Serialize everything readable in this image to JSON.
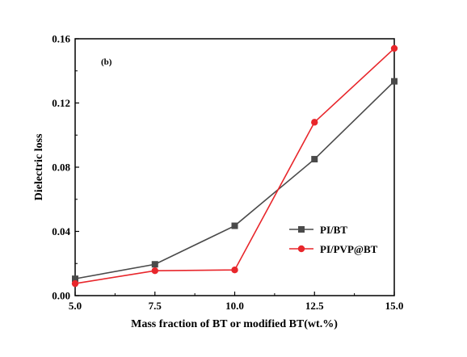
{
  "chart_data": {
    "type": "line",
    "panel_label": "(b)",
    "xlabel": "Mass fraction of BT or modified BT(wt.%)",
    "ylabel": "Dielectric loss",
    "xlim": [
      5.0,
      15.0
    ],
    "ylim": [
      0.0,
      0.16
    ],
    "x_ticks": [
      "5.0",
      "7.5",
      "10.0",
      "12.5",
      "15.0"
    ],
    "y_ticks": [
      "0.00",
      "0.04",
      "0.08",
      "0.12",
      "0.16"
    ],
    "x_tick_values": [
      5.0,
      7.5,
      10.0,
      12.5,
      15.0
    ],
    "y_tick_values": [
      0.0,
      0.04,
      0.08,
      0.12,
      0.16
    ],
    "x": [
      5.0,
      7.5,
      10.0,
      12.5,
      15.0
    ],
    "grid": false,
    "legend_position": "right-middle",
    "series": [
      {
        "name": "PI/BT",
        "values": [
          0.0105,
          0.0195,
          0.0435,
          0.085,
          0.1335
        ],
        "color": "#4a4a4a",
        "marker": "square"
      },
      {
        "name": "PI/PVP@BT",
        "values": [
          0.0075,
          0.0155,
          0.016,
          0.108,
          0.154
        ],
        "color": "#e8262b",
        "marker": "circle"
      }
    ]
  }
}
